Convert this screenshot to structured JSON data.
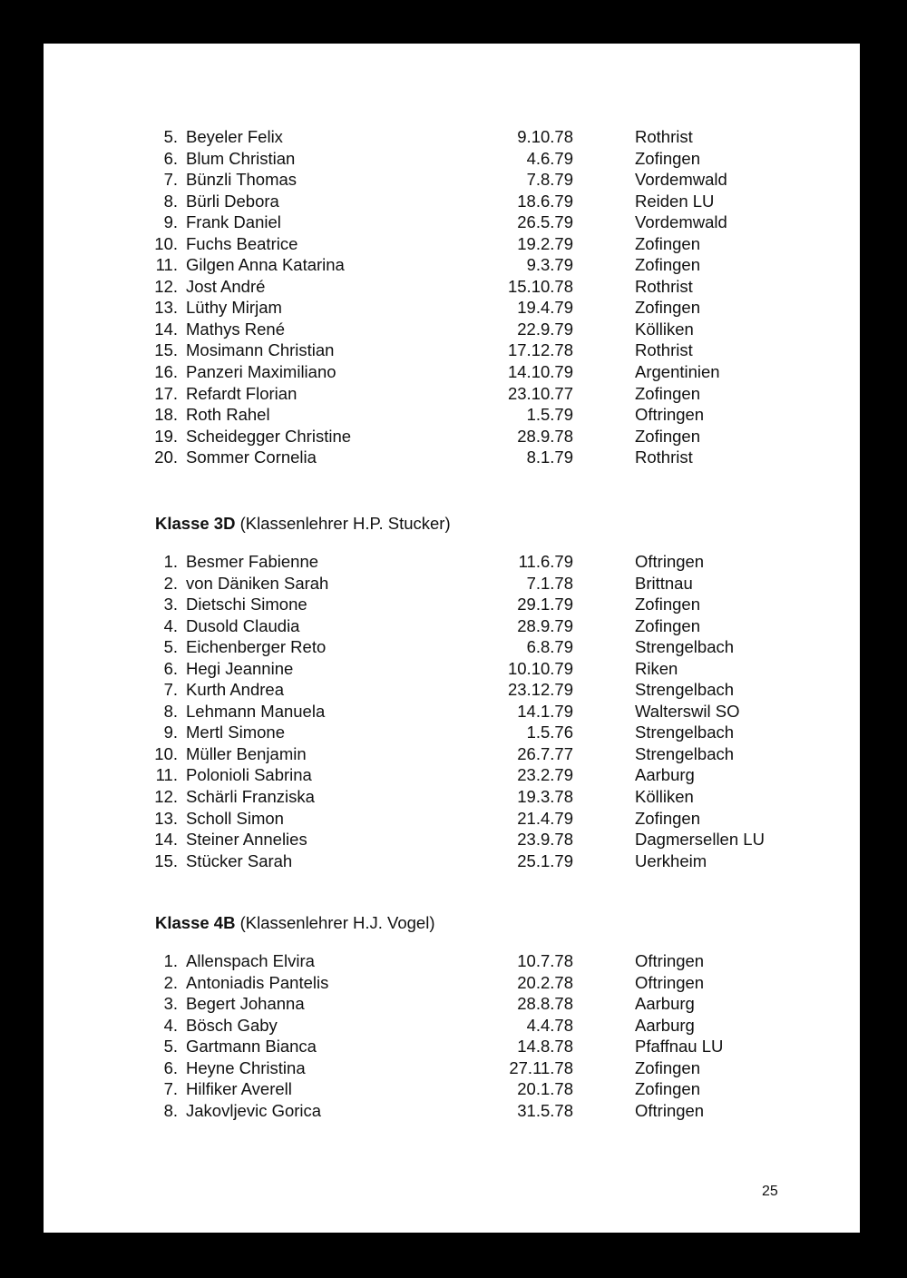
{
  "sections": [
    {
      "title": "",
      "subtitle": "",
      "rows": [
        {
          "num": "5.",
          "name": "Beyeler Felix",
          "date": "9.10.78",
          "city": "Rothrist"
        },
        {
          "num": "6.",
          "name": "Blum Christian",
          "date": "4.6.79",
          "city": "Zofingen"
        },
        {
          "num": "7.",
          "name": "Bünzli Thomas",
          "date": "7.8.79",
          "city": "Vordemwald"
        },
        {
          "num": "8.",
          "name": "Bürli Debora",
          "date": "18.6.79",
          "city": "Reiden LU"
        },
        {
          "num": "9.",
          "name": "Frank Daniel",
          "date": "26.5.79",
          "city": "Vordemwald"
        },
        {
          "num": "10.",
          "name": "Fuchs Beatrice",
          "date": "19.2.79",
          "city": "Zofingen"
        },
        {
          "num": "11.",
          "name": "Gilgen Anna Katarina",
          "date": "9.3.79",
          "city": "Zofingen"
        },
        {
          "num": "12.",
          "name": "Jost André",
          "date": "15.10.78",
          "city": "Rothrist"
        },
        {
          "num": "13.",
          "name": "Lüthy Mirjam",
          "date": "19.4.79",
          "city": "Zofingen"
        },
        {
          "num": "14.",
          "name": "Mathys René",
          "date": "22.9.79",
          "city": "Kölliken"
        },
        {
          "num": "15.",
          "name": "Mosimann Christian",
          "date": "17.12.78",
          "city": "Rothrist"
        },
        {
          "num": "16.",
          "name": "Panzeri Maximiliano",
          "date": "14.10.79",
          "city": "Argentinien"
        },
        {
          "num": "17.",
          "name": "Refardt Florian",
          "date": "23.10.77",
          "city": "Zofingen"
        },
        {
          "num": "18.",
          "name": "Roth Rahel",
          "date": "1.5.79",
          "city": "Oftringen"
        },
        {
          "num": "19.",
          "name": "Scheidegger Christine",
          "date": "28.9.78",
          "city": "Zofingen"
        },
        {
          "num": "20.",
          "name": "Sommer Cornelia",
          "date": "8.1.79",
          "city": "Rothrist"
        }
      ]
    },
    {
      "title": "Klasse 3D",
      "subtitle": "(Klassenlehrer H.P. Stucker)",
      "rows": [
        {
          "num": "1.",
          "name": "Besmer Fabienne",
          "date": "11.6.79",
          "city": "Oftringen"
        },
        {
          "num": "2.",
          "name": "von Däniken Sarah",
          "date": "7.1.78",
          "city": "Brittnau"
        },
        {
          "num": "3.",
          "name": "Dietschi Simone",
          "date": "29.1.79",
          "city": "Zofingen"
        },
        {
          "num": "4.",
          "name": "Dusold Claudia",
          "date": "28.9.79",
          "city": "Zofingen"
        },
        {
          "num": "5.",
          "name": "Eichenberger Reto",
          "date": "6.8.79",
          "city": "Strengelbach"
        },
        {
          "num": "6.",
          "name": "Hegi Jeannine",
          "date": "10.10.79",
          "city": "Riken"
        },
        {
          "num": "7.",
          "name": "Kurth Andrea",
          "date": "23.12.79",
          "city": "Strengelbach"
        },
        {
          "num": "8.",
          "name": "Lehmann Manuela",
          "date": "14.1.79",
          "city": "Walterswil SO"
        },
        {
          "num": "9.",
          "name": "Mertl Simone",
          "date": "1.5.76",
          "city": "Strengelbach"
        },
        {
          "num": "10.",
          "name": "Müller Benjamin",
          "date": "26.7.77",
          "city": "Strengelbach"
        },
        {
          "num": "11.",
          "name": "Polonioli Sabrina",
          "date": "23.2.79",
          "city": "Aarburg"
        },
        {
          "num": "12.",
          "name": "Schärli Franziska",
          "date": "19.3.78",
          "city": "Kölliken"
        },
        {
          "num": "13.",
          "name": "Scholl Simon",
          "date": "21.4.79",
          "city": "Zofingen"
        },
        {
          "num": "14.",
          "name": "Steiner Annelies",
          "date": "23.9.78",
          "city": "Dagmersellen LU"
        },
        {
          "num": "15.",
          "name": "Stücker Sarah",
          "date": "25.1.79",
          "city": "Uerkheim"
        }
      ]
    },
    {
      "title": "Klasse 4B",
      "subtitle": "(Klassenlehrer H.J. Vogel)",
      "rows": [
        {
          "num": "1.",
          "name": "Allenspach Elvira",
          "date": "10.7.78",
          "city": "Oftringen"
        },
        {
          "num": "2.",
          "name": "Antoniadis Pantelis",
          "date": "20.2.78",
          "city": "Oftringen"
        },
        {
          "num": "3.",
          "name": "Begert Johanna",
          "date": "28.8.78",
          "city": "Aarburg"
        },
        {
          "num": "4.",
          "name": "Bösch Gaby",
          "date": "4.4.78",
          "city": "Aarburg"
        },
        {
          "num": "5.",
          "name": "Gartmann Bianca",
          "date": "14.8.78",
          "city": "Pfaffnau LU"
        },
        {
          "num": "6.",
          "name": "Heyne Christina",
          "date": "27.11.78",
          "city": "Zofingen"
        },
        {
          "num": "7.",
          "name": "Hilfiker Averell",
          "date": "20.1.78",
          "city": "Zofingen"
        },
        {
          "num": "8.",
          "name": "Jakovljevic Gorica",
          "date": "31.5.78",
          "city": "Oftringen"
        }
      ]
    }
  ],
  "page_number": "25"
}
